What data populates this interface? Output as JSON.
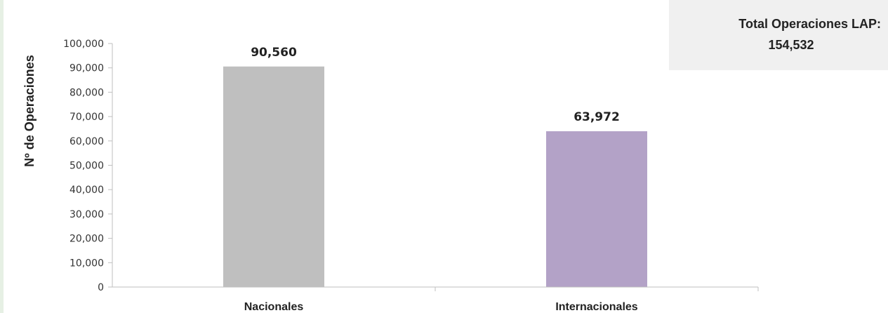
{
  "chart_data": {
    "type": "bar",
    "categories": [
      "Nacionales",
      "Internacionales"
    ],
    "values": [
      90560,
      63972
    ],
    "value_labels": [
      "90,560",
      "63,972"
    ],
    "ylabel": "Nº de Operaciones",
    "xlabel": "",
    "ylim": [
      0,
      100000
    ],
    "yticks": [
      0,
      10000,
      20000,
      30000,
      40000,
      50000,
      60000,
      70000,
      80000,
      90000,
      100000
    ],
    "ytick_labels": [
      "0",
      "10,000",
      "20,000",
      "30,000",
      "40,000",
      "50,000",
      "60,000",
      "70,000",
      "80,000",
      "90,000",
      "100,000"
    ],
    "colors": [
      "#bfbfbf",
      "#b3a2c7"
    ],
    "grid": false
  },
  "summary": {
    "label": "Total Operaciones LAP:",
    "value": "154,532"
  }
}
